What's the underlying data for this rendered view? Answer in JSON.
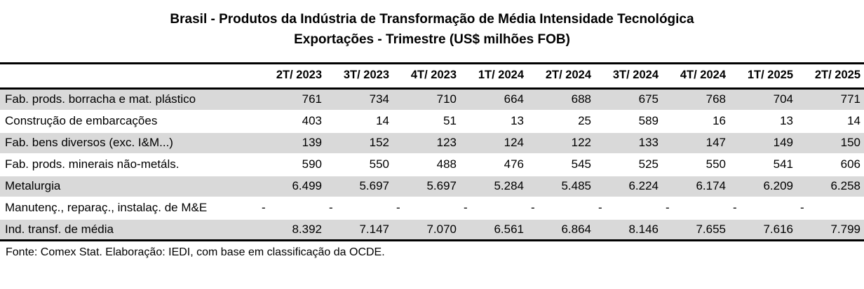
{
  "title": {
    "line1": "Brasil - Produtos da Indústria de Transformação de Média Intensidade Tecnológica",
    "line2": "Exportações - Trimestre (US$ milhões FOB)"
  },
  "footer": {
    "text": "Fonte: Comex Stat. Elaboração: IEDI, com base em classificação da OCDE."
  },
  "colors": {
    "stripe": "#d9d9d9",
    "rule": "#000000",
    "text": "#000000"
  },
  "chart_data": {
    "type": "table",
    "unit": "US$ milhões FOB",
    "columns": [
      "2T/ 2023",
      "3T/ 2023",
      "4T/ 2023",
      "1T/ 2024",
      "2T/ 2024",
      "3T/ 2024",
      "4T/ 2024",
      "1T/ 2025",
      "2T/ 2025"
    ],
    "rows": [
      {
        "label": "Fab. prods. borracha e mat. plástico",
        "values": [
          "761",
          "734",
          "710",
          "664",
          "688",
          "675",
          "768",
          "704",
          "771"
        ]
      },
      {
        "label": "Construção de embarcações",
        "values": [
          "403",
          "14",
          "51",
          "13",
          "25",
          "589",
          "16",
          "13",
          "14"
        ]
      },
      {
        "label": "Fab. bens diversos (exc. I&M...)",
        "values": [
          "139",
          "152",
          "123",
          "124",
          "122",
          "133",
          "147",
          "149",
          "150"
        ]
      },
      {
        "label": "Fab. prods. minerais não-metáls.",
        "values": [
          "590",
          "550",
          "488",
          "476",
          "545",
          "525",
          "550",
          "541",
          "606"
        ]
      },
      {
        "label": "Metalurgia",
        "values": [
          "6.499",
          "5.697",
          "5.697",
          "5.284",
          "5.485",
          "6.224",
          "6.174",
          "6.209",
          "6.258"
        ]
      },
      {
        "label": "Manutenç., reparaç., instalaç. de M&E",
        "values": [
          "-",
          "-",
          "-",
          "-",
          "-",
          "-",
          "-",
          "-",
          "-"
        ]
      },
      {
        "label": "Ind. transf. de média",
        "values": [
          "8.392",
          "7.147",
          "7.070",
          "6.561",
          "6.864",
          "8.146",
          "7.655",
          "7.616",
          "7.799"
        ]
      }
    ]
  }
}
